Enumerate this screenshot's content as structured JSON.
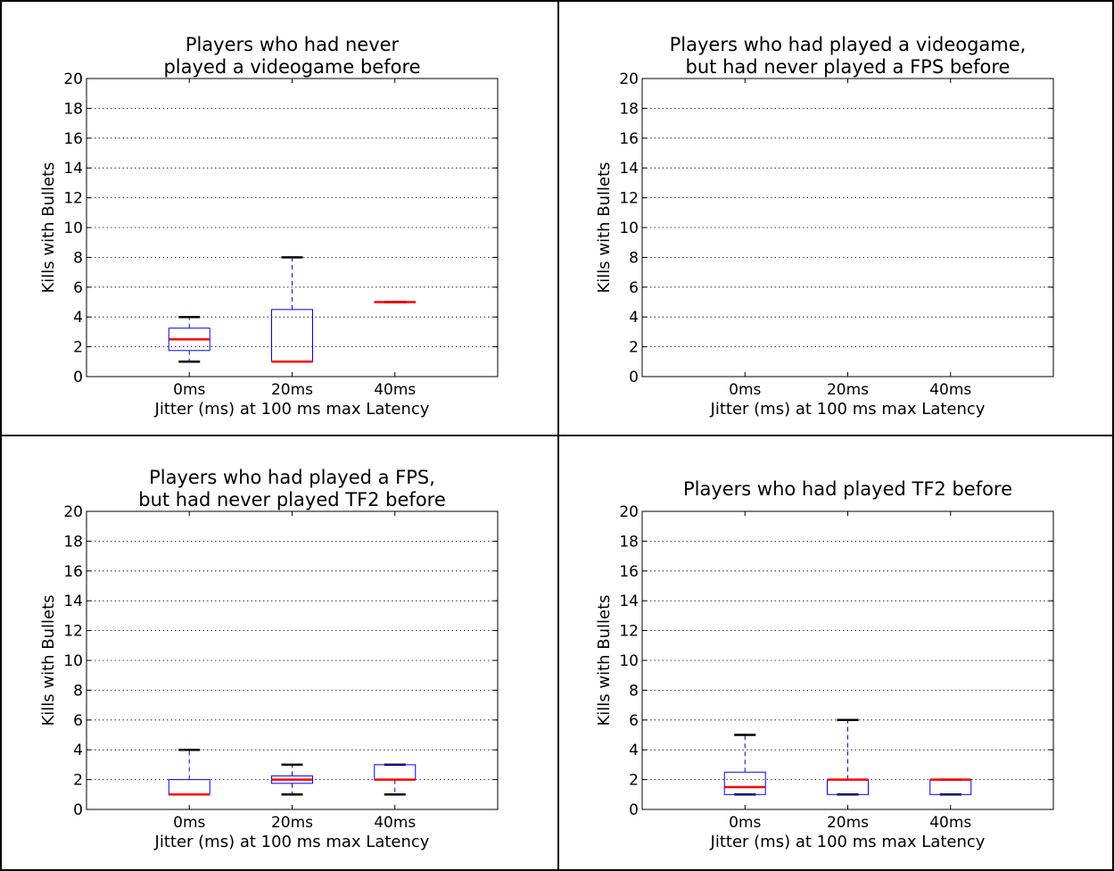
{
  "chart_data": [
    {
      "type": "box",
      "title": "Players who had never\nplayed a videogame before",
      "xlabel": "Jitter (ms) at 100 ms max Latency",
      "ylabel": "Kills with Bullets",
      "ylim": [
        0,
        20
      ],
      "yticks": [
        0,
        2,
        4,
        6,
        8,
        10,
        12,
        14,
        16,
        18,
        20
      ],
      "categories": [
        "0ms",
        "20ms",
        "40ms"
      ],
      "grid": "horizontal dotted",
      "boxes": [
        {
          "min": 1,
          "q1": 1.75,
          "median": 2.5,
          "q3": 3.25,
          "max": 4
        },
        {
          "min": 1,
          "q1": 1,
          "median": 1,
          "q3": 4.5,
          "max": 8
        },
        {
          "min": 5,
          "q1": 5,
          "median": 5,
          "q3": 5,
          "max": 5
        }
      ]
    },
    {
      "type": "box",
      "title": "Players who had played a videogame,\nbut had never played a FPS before",
      "xlabel": "Jitter (ms) at 100 ms max Latency",
      "ylabel": "Kills with Bullets",
      "ylim": [
        0,
        20
      ],
      "yticks": [
        0,
        2,
        4,
        6,
        8,
        10,
        12,
        14,
        16,
        18,
        20
      ],
      "categories": [
        "0ms",
        "20ms",
        "40ms"
      ],
      "grid": "horizontal dotted",
      "boxes": [
        null,
        null,
        null
      ]
    },
    {
      "type": "box",
      "title": "Players who had played a FPS,\nbut had never played TF2 before",
      "xlabel": "Jitter (ms) at 100 ms max Latency",
      "ylabel": "Kills with Bullets",
      "ylim": [
        0,
        20
      ],
      "yticks": [
        0,
        2,
        4,
        6,
        8,
        10,
        12,
        14,
        16,
        18,
        20
      ],
      "categories": [
        "0ms",
        "20ms",
        "40ms"
      ],
      "grid": "horizontal dotted",
      "boxes": [
        {
          "min": 1,
          "q1": 1,
          "median": 1,
          "q3": 2,
          "max": 4
        },
        {
          "min": 1,
          "q1": 1.75,
          "median": 2,
          "q3": 2.25,
          "max": 3
        },
        {
          "min": 1,
          "q1": 2,
          "median": 2,
          "q3": 3,
          "max": 3
        }
      ]
    },
    {
      "type": "box",
      "title": "Players who had played TF2 before",
      "xlabel": "Jitter (ms) at 100 ms max Latency",
      "ylabel": "Kills with Bullets",
      "ylim": [
        0,
        20
      ],
      "yticks": [
        0,
        2,
        4,
        6,
        8,
        10,
        12,
        14,
        16,
        18,
        20
      ],
      "categories": [
        "0ms",
        "20ms",
        "40ms"
      ],
      "grid": "horizontal dotted",
      "boxes": [
        {
          "min": 1,
          "q1": 1,
          "median": 1.5,
          "q3": 2.5,
          "max": 5
        },
        {
          "min": 1,
          "q1": 1,
          "median": 2,
          "q3": 2,
          "max": 6
        },
        {
          "min": 1,
          "q1": 1,
          "median": 2,
          "q3": 2,
          "max": 2
        }
      ]
    }
  ],
  "colors": {
    "box": "#0000ff",
    "median": "#ff0000",
    "whisker_cap": "#000000",
    "grid": "#000000"
  }
}
